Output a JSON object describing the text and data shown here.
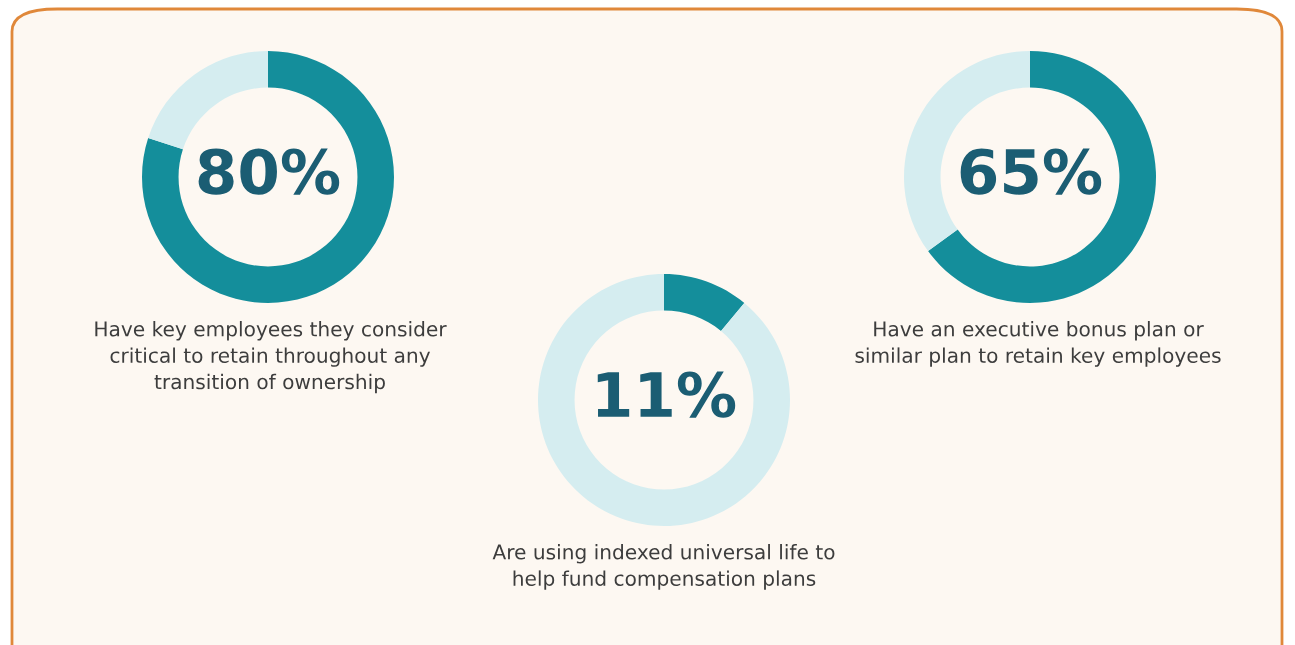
{
  "chart_data": [
    {
      "type": "donut",
      "title": "Have key employees they consider\ncritical to retain throughout any\ntransition of ownership",
      "categories": [
        null,
        null
      ],
      "values": [
        80,
        20
      ],
      "colors": [
        "#148e9b",
        "#d5edf0"
      ],
      "value_labels": [
        "80%",
        null
      ]
    },
    {
      "type": "donut",
      "title": "Are using indexed universal life to\nhelp fund compensation plans",
      "categories": [
        null,
        null
      ],
      "values": [
        11,
        89
      ],
      "colors": [
        "#148e9b",
        "#d5edf0"
      ],
      "value_labels": [
        "11%",
        null
      ]
    },
    {
      "type": "donut",
      "title": "Have an executive bonus plan or\nsimilar plan to retain key employees",
      "categories": [
        null,
        null
      ],
      "values": [
        65,
        35
      ],
      "colors": [
        "#148e9b",
        "#d5edf0"
      ],
      "value_labels": [
        "65%",
        null
      ]
    }
  ]
}
